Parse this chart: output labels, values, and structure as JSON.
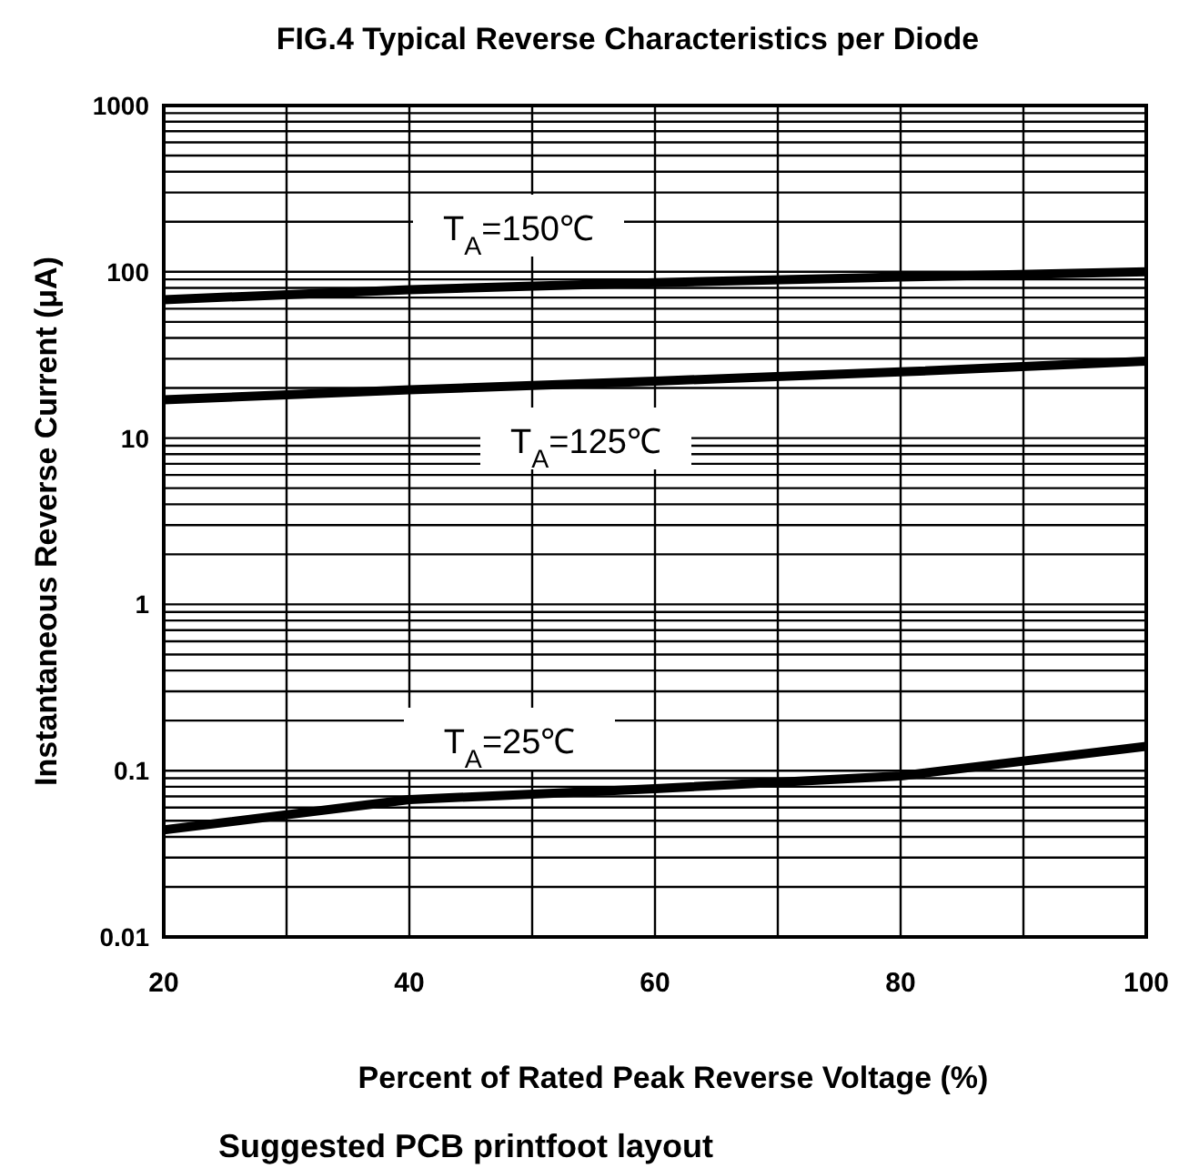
{
  "chart_data": {
    "type": "line",
    "title": "FIG.4 Typical Reverse Characteristics per Diode",
    "xlabel": "Percent of Rated Peak Reverse Voltage (%)",
    "ylabel": "Instantaneous Reverse Current (μA)",
    "x": [
      20,
      40,
      60,
      80,
      100
    ],
    "series": [
      {
        "name": "T$_{A}$=150℃",
        "color": "#000000",
        "values": [
          68,
          78,
          86,
          93,
          100
        ]
      },
      {
        "name": "T$_{A}$=125℃",
        "color": "#000000",
        "values": [
          17,
          19.5,
          22,
          25,
          29
        ]
      },
      {
        "name": "T$_{A}$=25℃",
        "color": "#000000",
        "values": [
          0.044,
          0.067,
          0.078,
          0.093,
          0.14
        ]
      }
    ],
    "xlim": [
      20,
      100
    ],
    "xticks": [
      20,
      {
        "value": 30,
        "label": null
      },
      40,
      {
        "value": 50,
        "label": null
      },
      60,
      {
        "value": 70,
        "label": null
      },
      80,
      {
        "value": 90,
        "label": null
      },
      100
    ],
    "ylim": [
      0.01,
      1000
    ],
    "yticks": [
      0.01,
      {
        "value": 0.02,
        "label": null
      },
      {
        "value": 0.03,
        "label": null
      },
      {
        "value": 0.04,
        "label": null
      },
      {
        "value": 0.05,
        "label": null
      },
      {
        "value": 0.06,
        "label": null
      },
      {
        "value": 0.07,
        "label": null
      },
      {
        "value": 0.08,
        "label": null
      },
      {
        "value": 0.09,
        "label": null
      },
      0.1,
      {
        "value": 0.2,
        "label": null
      },
      {
        "value": 0.3,
        "label": null
      },
      {
        "value": 0.4,
        "label": null
      },
      {
        "value": 0.5,
        "label": null
      },
      {
        "value": 0.6,
        "label": null
      },
      {
        "value": 0.7,
        "label": null
      },
      {
        "value": 0.8,
        "label": null
      },
      {
        "value": 0.9,
        "label": null
      },
      1,
      {
        "value": 2,
        "label": null
      },
      {
        "value": 3,
        "label": null
      },
      {
        "value": 4,
        "label": null
      },
      {
        "value": 5,
        "label": null
      },
      {
        "value": 6,
        "label": null
      },
      {
        "value": 7,
        "label": null
      },
      {
        "value": 8,
        "label": null
      },
      {
        "value": 9,
        "label": null
      },
      10,
      {
        "value": 20,
        "label": null
      },
      {
        "value": 30,
        "label": null
      },
      {
        "value": 40,
        "label": null
      },
      {
        "value": 50,
        "label": null
      },
      {
        "value": 60,
        "label": null
      },
      {
        "value": 70,
        "label": null
      },
      {
        "value": 80,
        "label": null
      },
      {
        "value": 90,
        "label": null
      },
      100,
      {
        "value": 200,
        "label": null
      },
      {
        "value": 300,
        "label": null
      },
      {
        "value": 400,
        "label": null
      },
      {
        "value": 500,
        "label": null
      },
      {
        "value": 600,
        "label": null
      },
      {
        "value": 700,
        "label": null
      },
      {
        "value": 800,
        "label": null
      },
      {
        "value": 900,
        "label": null
      },
      1000
    ],
    "log": "y",
    "grid": true,
    "marker": "none",
    "line_style": "solid",
    "annotations": [
      "Suggested PCB printfoot layout"
    ]
  }
}
